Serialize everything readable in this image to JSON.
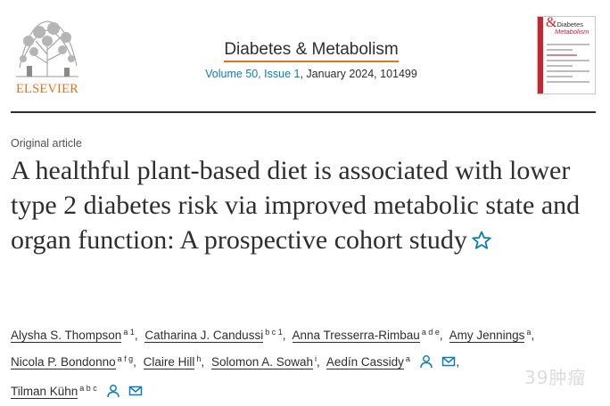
{
  "publisher": {
    "name": "ELSEVIER"
  },
  "journal": {
    "title": "Diabetes & Metabolism",
    "volume_issue": "Volume 50, Issue 1",
    "date_id": ", January 2024, 101499",
    "cover_title_amp": "&",
    "cover_title_1": "Diabetes",
    "cover_title_2": "Metabolism"
  },
  "article": {
    "type": "Original article",
    "title": "A healthful plant-based diet is associated with lower type 2 diabetes risk via improved metabolic state and organ function: A prospective cohort study",
    "star_icon": "star-outline-icon"
  },
  "authors": [
    {
      "name": "Alysha S. Thompson",
      "aff": "a 1"
    },
    {
      "name": "Catharina J. Candussi",
      "aff": "b c 1"
    },
    {
      "name": "Anna Tresserra-Rimbau",
      "aff": "a d e"
    },
    {
      "name": "Amy Jennings",
      "aff": "a"
    },
    {
      "name": "Nicola P. Bondonno",
      "aff": "a f g"
    },
    {
      "name": "Claire Hill",
      "aff": "h"
    },
    {
      "name": "Solomon A. Sowah",
      "aff": "i"
    },
    {
      "name": "Aedín Cassidy",
      "aff": "a"
    },
    {
      "name": "Tilman Kühn",
      "aff": "a b c"
    }
  ],
  "icons": {
    "person": "person-icon",
    "email": "email-icon"
  },
  "colors": {
    "accent": "#e9711c",
    "link": "#0c7dbb",
    "text": "#2e2e2e"
  },
  "watermark": {
    "text": "39肿瘤"
  }
}
